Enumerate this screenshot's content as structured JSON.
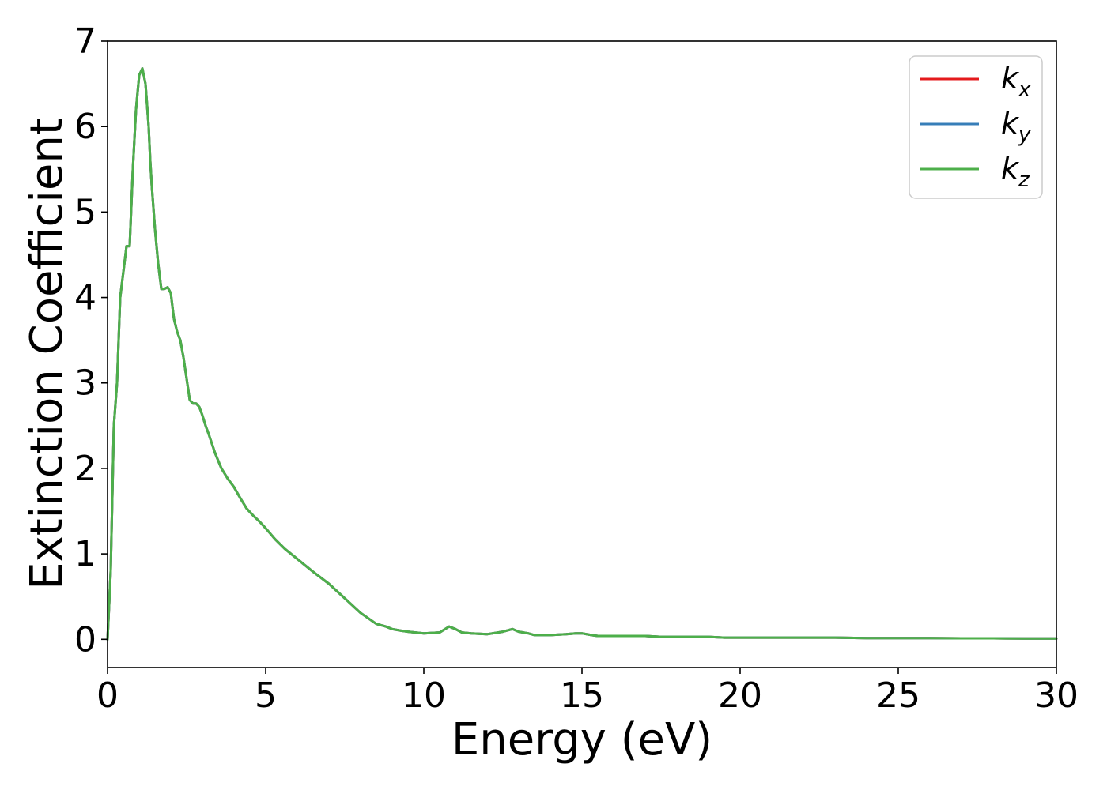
{
  "chart_data": {
    "type": "line",
    "xlabel": "Energy (eV)",
    "ylabel": "Extinction Coefficient",
    "xlim": [
      0,
      30
    ],
    "ylim": [
      -0.33,
      7
    ],
    "xticks": [
      0,
      5,
      10,
      15,
      20,
      25,
      30
    ],
    "xtick_labels": [
      "0",
      "5",
      "10",
      "15",
      "20",
      "25",
      "30"
    ],
    "yticks": [
      0,
      1,
      2,
      3,
      4,
      5,
      6,
      7
    ],
    "ytick_labels": [
      "0",
      "1",
      "2",
      "3",
      "4",
      "5",
      "6",
      "7"
    ],
    "grid": false,
    "legend_position": "top-right",
    "series": [
      {
        "name_base": "k",
        "name_sub": "x",
        "color": "#e41a1c"
      },
      {
        "name_base": "k",
        "name_sub": "y",
        "color": "#377eb8"
      },
      {
        "name_base": "k",
        "name_sub": "z",
        "color": "#4daf4a"
      }
    ],
    "x": [
      0,
      0.1,
      0.2,
      0.3,
      0.4,
      0.5,
      0.6,
      0.7,
      0.8,
      0.9,
      1.0,
      1.1,
      1.2,
      1.3,
      1.35,
      1.4,
      1.5,
      1.6,
      1.7,
      1.8,
      1.9,
      2.0,
      2.1,
      2.2,
      2.3,
      2.4,
      2.5,
      2.6,
      2.7,
      2.8,
      2.9,
      3.0,
      3.1,
      3.2,
      3.4,
      3.6,
      3.8,
      4.0,
      4.2,
      4.4,
      4.6,
      4.8,
      5.0,
      5.3,
      5.6,
      6.0,
      6.5,
      7.0,
      7.5,
      8.0,
      8.5,
      8.8,
      9.0,
      9.3,
      9.5,
      10.0,
      10.5,
      10.8,
      11.0,
      11.2,
      11.5,
      12.0,
      12.5,
      12.8,
      13.0,
      13.3,
      13.5,
      14.0,
      14.5,
      14.8,
      15.0,
      15.3,
      15.5,
      16.0,
      16.5,
      17.0,
      17.5,
      18.0,
      18.5,
      19.0,
      19.5,
      20.0,
      21.0,
      22.0,
      23.0,
      24.0,
      25.0,
      26.0,
      27.0,
      28.0,
      29.0,
      30.0
    ],
    "values": [
      0,
      0.8,
      2.5,
      3.0,
      4.0,
      4.3,
      4.6,
      4.6,
      5.5,
      6.2,
      6.6,
      6.68,
      6.5,
      6.0,
      5.6,
      5.3,
      4.8,
      4.4,
      4.1,
      4.1,
      4.12,
      4.05,
      3.75,
      3.6,
      3.5,
      3.3,
      3.05,
      2.8,
      2.76,
      2.76,
      2.72,
      2.62,
      2.5,
      2.4,
      2.18,
      2.0,
      1.88,
      1.78,
      1.65,
      1.53,
      1.45,
      1.38,
      1.3,
      1.17,
      1.06,
      0.94,
      0.79,
      0.65,
      0.48,
      0.31,
      0.18,
      0.15,
      0.12,
      0.1,
      0.09,
      0.07,
      0.08,
      0.15,
      0.12,
      0.08,
      0.07,
      0.06,
      0.09,
      0.12,
      0.09,
      0.07,
      0.05,
      0.05,
      0.06,
      0.07,
      0.07,
      0.05,
      0.04,
      0.04,
      0.04,
      0.04,
      0.03,
      0.03,
      0.03,
      0.03,
      0.02,
      0.02,
      0.02,
      0.02,
      0.02,
      0.015,
      0.015,
      0.015,
      0.012,
      0.012,
      0.01,
      0.01
    ]
  }
}
